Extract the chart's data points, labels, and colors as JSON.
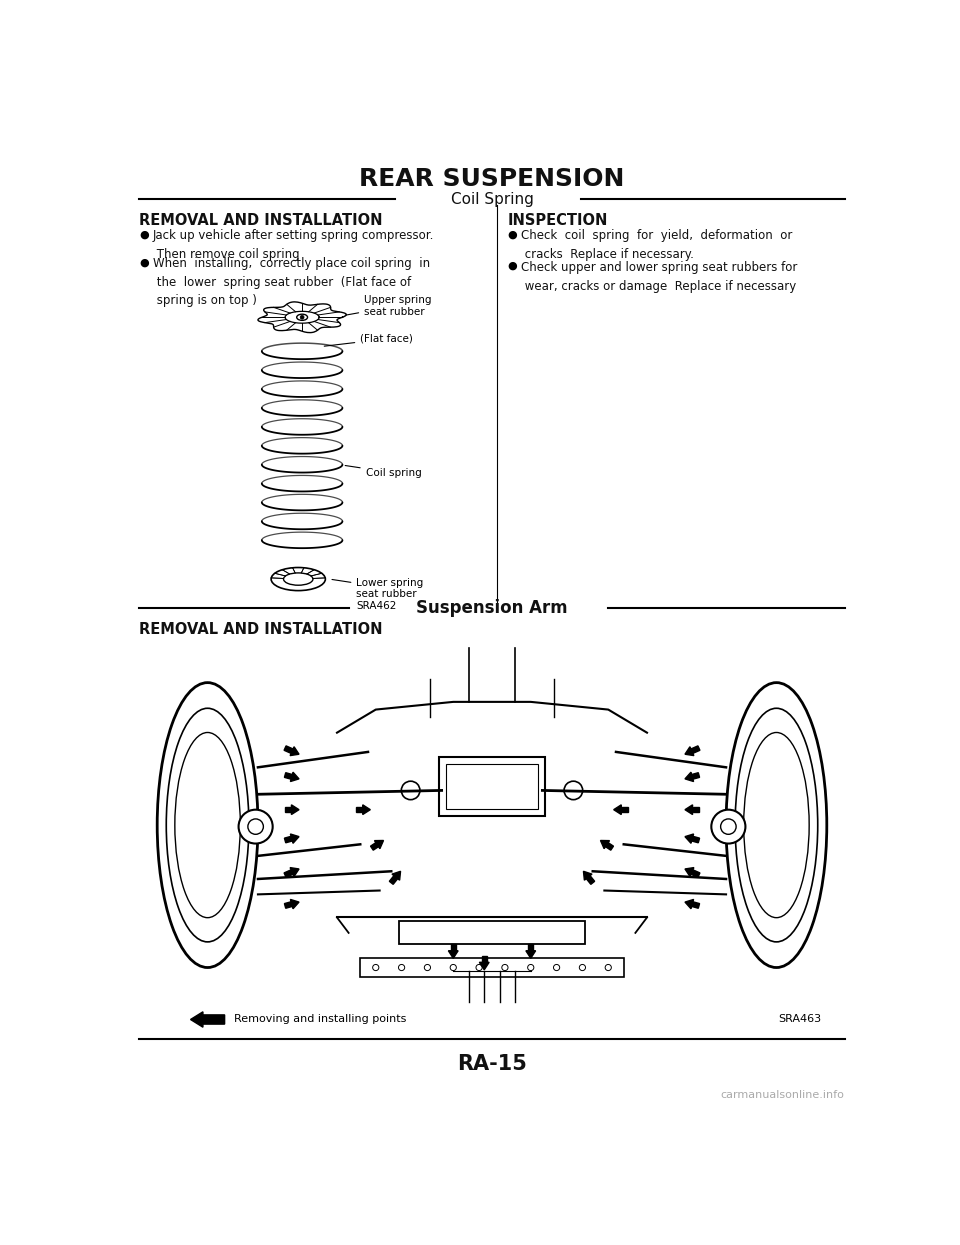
{
  "title": "REAR SUSPENSION",
  "section1_title": "Coil Spring",
  "left_heading": "REMOVAL AND INSTALLATION",
  "left_bullet1": "Jack up vehicle after setting spring compressor.\n Then remove coil spring",
  "left_bullet2": "When  installing,  correctly place coil spring  in\n the  lower  spring seat rubber  (Flat face of\n spring is on top )",
  "right_heading": "INSPECTION",
  "right_bullet1": "Check  coil  spring  for  yield,  deformation  or\n cracks  Replace if necessary.",
  "right_bullet2": "Check upper and lower spring seat rubbers for\n wear, cracks or damage  Replace if necessary",
  "label_upper": "Upper spring\nseat rubber",
  "label_flat": "(Flat face)",
  "label_coil": "Coil spring",
  "label_lower": "Lower spring\nseat rubber",
  "code1": "SRA462",
  "section2_title": "Suspension Arm",
  "section2_heading": "REMOVAL AND INSTALLATION",
  "diagram2_label": "Removing and installing points",
  "code2": "SRA463",
  "page_number": "RA-15",
  "watermark": "carmanualsonline.info",
  "bg_color": "#ffffff",
  "text_color": "#111111"
}
